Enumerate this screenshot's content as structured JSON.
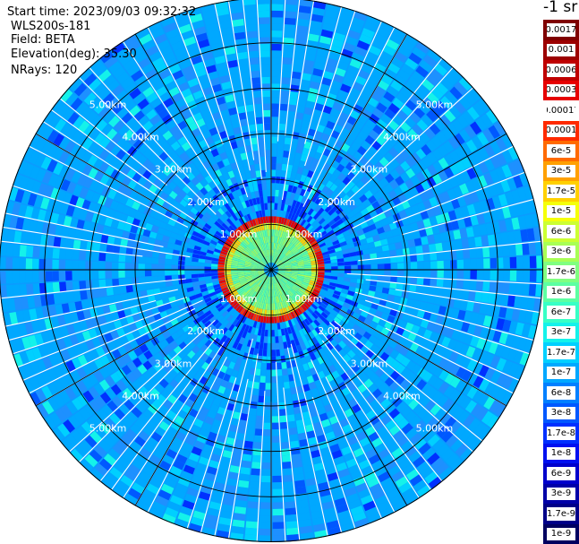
{
  "header": {
    "start_time": "Start time: 2023/09/03 09:32:32",
    "instrument": "WLS200s-181",
    "field": "Field: BETA",
    "elevation": "Elevation(deg): 35.30",
    "nrays": "NRays: 120"
  },
  "colorbar": {
    "unit_label": "-1 sr",
    "labels": [
      "0.0017",
      "0.001",
      "0.0006",
      "0.0003",
      "0.00017",
      "0.0001",
      "6e-5",
      "3e-5",
      "1.7e-5",
      "1e-5",
      "6e-6",
      "3e-6",
      "1.7e-6",
      "1e-6",
      "6e-7",
      "3e-7",
      "1.7e-7",
      "1e-7",
      "6e-8",
      "3e-8",
      "1.7e-8",
      "1e-8",
      "6e-9",
      "3e-9",
      "1.7e-9",
      "1e-9"
    ],
    "colors": [
      "#7f0000",
      "#9c0000",
      "#bf0000",
      "#e60000",
      "#ffffff",
      "#ff2a00",
      "#ff6a00",
      "#ffa000",
      "#ffd000",
      "#f5ff0a",
      "#ccff33",
      "#a8ff55",
      "#80ff80",
      "#5cffa2",
      "#38ffc6",
      "#14f2ea",
      "#00d0ff",
      "#00a8ff",
      "#0080ff",
      "#0058ff",
      "#0030ff",
      "#0010f0",
      "#0000cc",
      "#0000a8",
      "#000088",
      "#000060"
    ]
  },
  "chart_data": {
    "type": "heatmap",
    "title": "",
    "field": "BETA",
    "elevation_deg": 35.3,
    "n_rays": 120,
    "range_ring_labels": [
      "1.00km",
      "2.00km",
      "3.00km",
      "4.00km",
      "5.00km"
    ],
    "range_rings_km": [
      1,
      2,
      3,
      4,
      5
    ],
    "max_range_km": 6,
    "azimuth_spokes_deg": [
      0,
      30,
      60,
      90,
      120,
      150,
      180,
      210,
      240,
      270,
      300,
      330
    ],
    "colorscale": "log, 1e-9 to 0.0017 sr-1",
    "description_values": {
      "near_field_ring_km": 1.05,
      "near_field_ring_beta": 0.0006,
      "core_beta_range": [
        3e-07,
        1e-06
      ],
      "far_field_beta_range": [
        1e-08,
        1e-07
      ]
    }
  }
}
